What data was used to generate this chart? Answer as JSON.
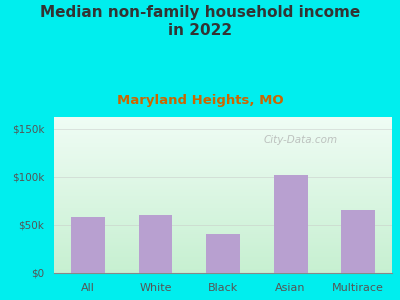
{
  "title": "Median non-family household income\nin 2022",
  "subtitle": "Maryland Heights, MO",
  "categories": [
    "All",
    "White",
    "Black",
    "Asian",
    "Multirace"
  ],
  "values": [
    58000,
    60000,
    40000,
    102000,
    65000
  ],
  "bar_color": "#b8a0d0",
  "title_fontsize": 11,
  "subtitle_fontsize": 9.5,
  "subtitle_color": "#cc6600",
  "title_color": "#333333",
  "bg_outer": "#00eeee",
  "bg_plot_grad_topleft": "#c8eecc",
  "bg_plot_grad_topright": "#e8f8f0",
  "bg_plot_grad_bottom": "#d8f0d8",
  "tick_color": "#555555",
  "ylim": [
    0,
    162000
  ],
  "yticks": [
    0,
    50000,
    100000,
    150000
  ],
  "ytick_labels": [
    "$0",
    "$50k",
    "$100k",
    "$150k"
  ],
  "watermark": "City-Data.com",
  "gridline_color": "#c8c8c8",
  "gridline_alpha": 0.5
}
